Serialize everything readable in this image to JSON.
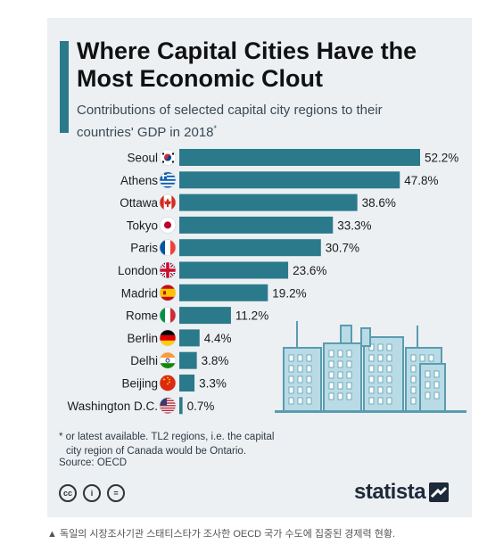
{
  "title": "Where Capital Cities Have the Most Economic Clout",
  "subtitle": "Contributions of selected capital city regions to their countries' GDP in 2018",
  "subtitle_mark": "*",
  "footnote_line1": "* or latest available. TL2 regions, i.e. the capital",
  "footnote_line2": "city region of Canada would be Ontario.",
  "source": "Source: OECD",
  "brand": "statista",
  "caption": "▲ 독일의 시장조사기관 스태티스타가 조사한 OECD 국가 수도에 집중된 경제력 현황.",
  "cc_icons": [
    {
      "name": "cc-icon",
      "glyph": "cc"
    },
    {
      "name": "attribution-icon",
      "glyph": "i"
    },
    {
      "name": "no-derivatives-icon",
      "glyph": "="
    }
  ],
  "colors": {
    "bar": "#2a7a8c",
    "accent": "#2a7a8c",
    "skyline": "#b9dbe6",
    "skyline_stroke": "#5a9cb0"
  },
  "chart_data": {
    "type": "bar",
    "orientation": "horizontal",
    "categories": [
      "Seoul",
      "Athens",
      "Ottawa",
      "Tokyo",
      "Paris",
      "London",
      "Madrid",
      "Rome",
      "Berlin",
      "Delhi",
      "Beijing",
      "Washington D.C."
    ],
    "values": [
      52.2,
      47.8,
      38.6,
      33.3,
      30.7,
      23.6,
      19.2,
      11.2,
      4.4,
      3.8,
      3.3,
      0.7
    ],
    "value_labels": [
      "52.2%",
      "47.8%",
      "38.6%",
      "33.3%",
      "30.7%",
      "23.6%",
      "19.2%",
      "11.2%",
      "4.4%",
      "3.8%",
      "3.3%",
      "0.7%"
    ],
    "flags": [
      "south-korea-flag-icon",
      "greece-flag-icon",
      "canada-flag-icon",
      "japan-flag-icon",
      "france-flag-icon",
      "uk-flag-icon",
      "spain-flag-icon",
      "italy-flag-icon",
      "germany-flag-icon",
      "india-flag-icon",
      "china-flag-icon",
      "usa-flag-icon"
    ],
    "xlim": [
      0,
      52.2
    ],
    "grid": false,
    "legend": "none"
  }
}
